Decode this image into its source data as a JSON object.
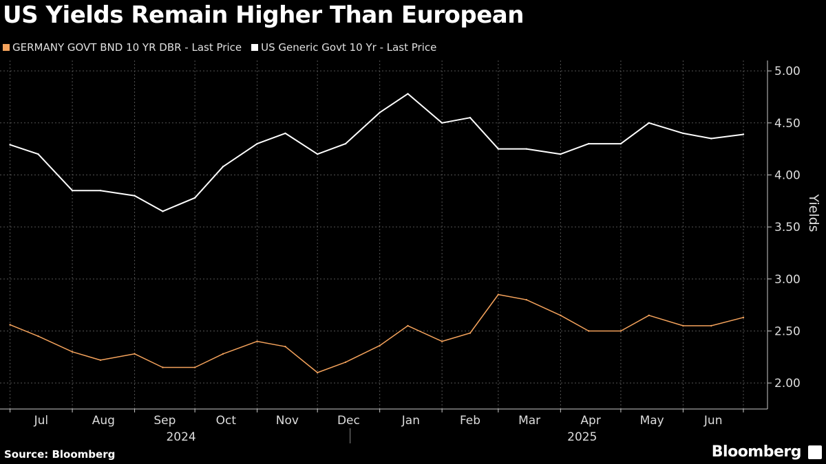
{
  "header": {
    "title": "US Yields Remain Higher Than European"
  },
  "footer": {
    "source": "Source: Bloomberg",
    "brand": "Bloomberg"
  },
  "chart_data": {
    "type": "line",
    "title": "US Yields Remain Higher Than European",
    "ylabel": "Yields",
    "xlabel": "",
    "ylim": [
      1.75,
      5.1
    ],
    "grid": true,
    "legend_position": "top-left",
    "yticks": [
      2.0,
      2.5,
      3.0,
      3.5,
      4.0,
      4.5,
      5.0
    ],
    "ytick_labels": [
      "2.00",
      "2.50",
      "3.00",
      "3.50",
      "4.00",
      "4.50",
      "5.00"
    ],
    "month_labels": [
      "Jul",
      "Aug",
      "Sep",
      "Oct",
      "Nov",
      "Dec",
      "Jan",
      "Feb",
      "Mar",
      "Apr",
      "May",
      "Jun"
    ],
    "year_labels": [
      "2024",
      "2025"
    ],
    "x": [
      "2024-07-01",
      "2024-07-15",
      "2024-08-01",
      "2024-08-15",
      "2024-09-01",
      "2024-09-15",
      "2024-10-01",
      "2024-10-15",
      "2024-11-01",
      "2024-11-15",
      "2024-12-01",
      "2024-12-15",
      "2025-01-01",
      "2025-01-15",
      "2025-02-01",
      "2025-02-15",
      "2025-03-01",
      "2025-03-15",
      "2025-04-01",
      "2025-04-15",
      "2025-05-01",
      "2025-05-15",
      "2025-06-01",
      "2025-06-15",
      "2025-07-01"
    ],
    "series": [
      {
        "name": "GERMANY GOVT BND 10 YR DBR - Last Price",
        "color": "#f5a35c",
        "values": [
          2.56,
          2.45,
          2.3,
          2.22,
          2.28,
          2.15,
          2.15,
          2.28,
          2.4,
          2.35,
          2.1,
          2.2,
          2.36,
          2.55,
          2.4,
          2.48,
          2.85,
          2.8,
          2.65,
          2.5,
          2.5,
          2.65,
          2.55,
          2.55,
          2.63
        ]
      },
      {
        "name": "US Generic Govt 10 Yr - Last Price",
        "color": "#ffffff",
        "values": [
          4.29,
          4.2,
          3.85,
          3.85,
          3.8,
          3.65,
          3.78,
          4.08,
          4.3,
          4.4,
          4.2,
          4.3,
          4.6,
          4.78,
          4.5,
          4.55,
          4.25,
          4.25,
          4.2,
          4.3,
          4.3,
          4.5,
          4.4,
          4.35,
          4.39
        ]
      }
    ]
  }
}
